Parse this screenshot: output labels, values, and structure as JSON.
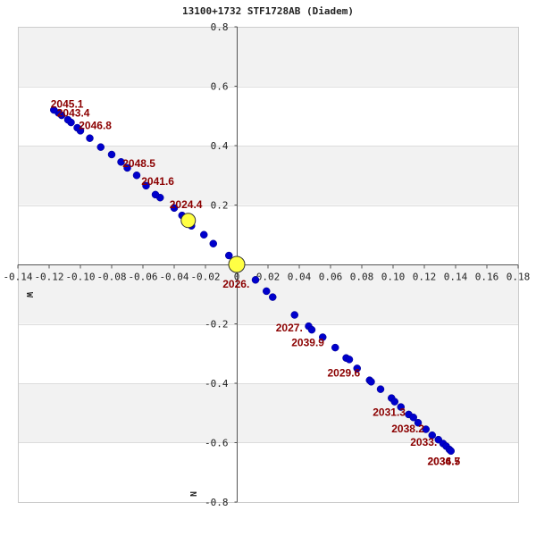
{
  "chart_data": {
    "type": "scatter",
    "title": "13100+1732 STF1728AB (Diadem)",
    "xlim": [
      -0.14,
      0.18
    ],
    "ylim": [
      -0.8,
      0.8
    ],
    "x_ticks": [
      -0.14,
      -0.12,
      -0.1,
      -0.08,
      -0.06,
      -0.04,
      -0.02,
      0,
      0.02,
      0.04,
      0.06,
      0.08,
      0.1,
      0.12,
      0.14,
      0.16,
      0.18
    ],
    "y_ticks": [
      0.8,
      0.6,
      0.4,
      0.2,
      -0.2,
      -0.4,
      -0.6,
      -0.8
    ],
    "tick_labels_x": [
      "-0.14",
      "-0.12",
      "-0.10",
      "-0.08",
      "-0.06",
      "-0.04",
      "-0.02",
      "0",
      "0.02",
      "0.04",
      "0.06",
      "0.08",
      "0.10",
      "0.12",
      "0.14",
      "0.16",
      "0.18"
    ],
    "tick_labels_y": [
      "0.8",
      "0.6",
      "0.4",
      "0.2",
      "-0.2",
      "-0.4",
      "-0.6",
      "-0.8"
    ],
    "direction_labels": {
      "left": "W",
      "bottom": "N"
    },
    "colors": {
      "points": "#0000cc",
      "labels": "#8b0000",
      "marker": "#ffff44",
      "band": "#f2f2f2"
    },
    "series": [
      {
        "values": [
          [
            0.0,
            0.0
          ],
          [
            0.012,
            -0.052
          ],
          [
            0.019,
            -0.09
          ],
          [
            0.023,
            -0.11
          ],
          [
            0.037,
            -0.17
          ],
          [
            0.046,
            -0.208
          ],
          [
            0.048,
            -0.22
          ],
          [
            0.055,
            -0.245
          ],
          [
            0.063,
            -0.28
          ],
          [
            0.07,
            -0.315
          ],
          [
            0.072,
            -0.32
          ],
          [
            0.077,
            -0.35
          ],
          [
            0.085,
            -0.39
          ],
          [
            0.086,
            -0.395
          ],
          [
            0.092,
            -0.42
          ],
          [
            0.099,
            -0.45
          ],
          [
            0.101,
            -0.462
          ],
          [
            0.105,
            -0.48
          ],
          [
            0.11,
            -0.505
          ],
          [
            0.113,
            -0.515
          ],
          [
            0.116,
            -0.533
          ],
          [
            0.121,
            -0.555
          ],
          [
            0.125,
            -0.575
          ],
          [
            0.129,
            -0.59
          ],
          [
            0.132,
            -0.603
          ],
          [
            0.134,
            -0.612
          ],
          [
            0.136,
            -0.623
          ],
          [
            0.137,
            -0.628
          ],
          [
            -0.005,
            0.03
          ],
          [
            -0.015,
            0.07
          ],
          [
            -0.021,
            0.1
          ],
          [
            -0.029,
            0.13
          ],
          [
            -0.035,
            0.165
          ],
          [
            -0.04,
            0.19
          ],
          [
            -0.049,
            0.225
          ],
          [
            -0.052,
            0.235
          ],
          [
            -0.058,
            0.265
          ],
          [
            -0.064,
            0.3
          ],
          [
            -0.07,
            0.325
          ],
          [
            -0.074,
            0.345
          ],
          [
            -0.08,
            0.37
          ],
          [
            -0.087,
            0.395
          ],
          [
            -0.094,
            0.425
          ],
          [
            -0.1,
            0.45
          ],
          [
            -0.102,
            0.46
          ],
          [
            -0.106,
            0.478
          ],
          [
            -0.108,
            0.487
          ],
          [
            -0.112,
            0.502
          ],
          [
            -0.114,
            0.51
          ],
          [
            -0.117,
            0.52
          ]
        ]
      }
    ],
    "markers": [
      {
        "x": 0.0,
        "y": 0.0,
        "size": "large"
      },
      {
        "x": -0.031,
        "y": 0.148,
        "size": "medium"
      }
    ],
    "annotations": [
      {
        "text": "2045.1",
        "x": -0.119,
        "y": 0.528
      },
      {
        "text": "2043.4",
        "x": -0.115,
        "y": 0.498
      },
      {
        "text": "2046.8",
        "x": -0.101,
        "y": 0.456
      },
      {
        "text": "2048.5",
        "x": -0.073,
        "y": 0.328
      },
      {
        "text": "2041.6",
        "x": -0.061,
        "y": 0.268
      },
      {
        "text": "2024.4",
        "x": -0.043,
        "y": 0.19
      },
      {
        "text": "2026.",
        "x": -0.009,
        "y": -0.078
      },
      {
        "text": "2027.",
        "x": 0.025,
        "y": -0.225
      },
      {
        "text": "2039.9",
        "x": 0.035,
        "y": -0.275
      },
      {
        "text": "2029.6",
        "x": 0.058,
        "y": -0.378
      },
      {
        "text": "2031.3",
        "x": 0.087,
        "y": -0.51
      },
      {
        "text": "2038.2",
        "x": 0.099,
        "y": -0.565
      },
      {
        "text": "2033.",
        "x": 0.111,
        "y": -0.61
      },
      {
        "text": "2036.5",
        "x": 0.122,
        "y": -0.675
      },
      {
        "text": "2034.7",
        "x": 0.122,
        "y": -0.675
      }
    ]
  }
}
